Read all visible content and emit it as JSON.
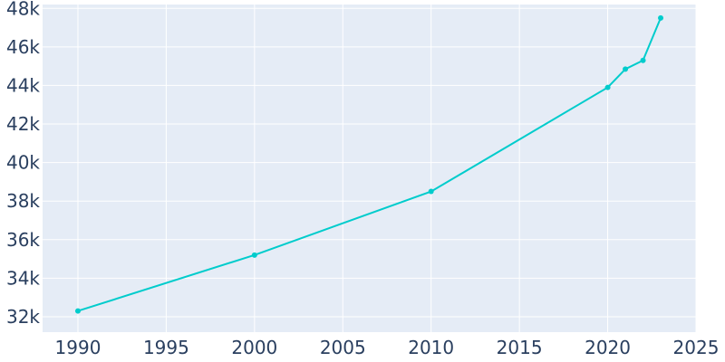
{
  "chart_data": {
    "type": "line",
    "title": "",
    "xlabel": "",
    "ylabel": "",
    "xlim": [
      1988,
      2025
    ],
    "ylim": [
      31200,
      48200
    ],
    "x_ticks": [
      1990,
      1995,
      2000,
      2005,
      2010,
      2015,
      2020,
      2025
    ],
    "x_tick_labels": [
      "1990",
      "1995",
      "2000",
      "2005",
      "2010",
      "2015",
      "2020",
      "2025"
    ],
    "y_ticks": [
      32000,
      34000,
      36000,
      38000,
      40000,
      42000,
      44000,
      46000,
      48000
    ],
    "y_tick_labels": [
      "32k",
      "34k",
      "36k",
      "38k",
      "40k",
      "42k",
      "44k",
      "46k",
      "48k"
    ],
    "grid": true,
    "legend": false,
    "colors": {
      "plot_background": "#e5ecf6",
      "grid": "#ffffff",
      "line": "#00cccc",
      "tick_text": "#2a3f5f"
    },
    "series": [
      {
        "x": [
          1990,
          2000,
          2010,
          2020,
          2021,
          2022,
          2023
        ],
        "y": [
          32300,
          35200,
          38500,
          43900,
          44850,
          45300,
          47500
        ]
      }
    ]
  }
}
